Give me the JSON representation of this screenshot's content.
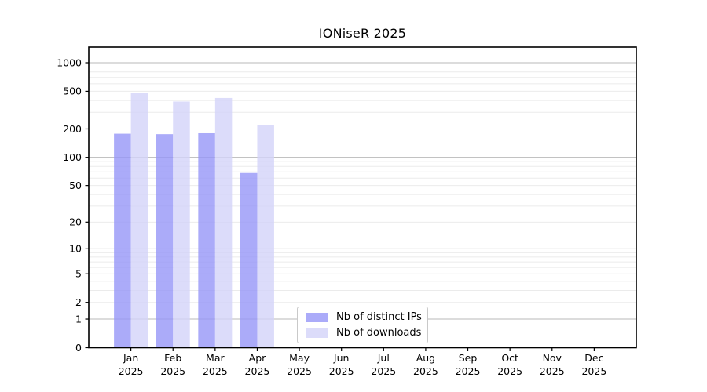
{
  "title": "IONiseR 2025",
  "chart_data": {
    "type": "bar",
    "title": "IONiseR 2025",
    "x_axis": {
      "categories": [
        "Jan",
        "Feb",
        "Mar",
        "Apr",
        "May",
        "Jun",
        "Jul",
        "Aug",
        "Sep",
        "Oct",
        "Nov",
        "Dec"
      ],
      "year_line": "2025"
    },
    "y_axis": {
      "scale": "log1p",
      "ticks": [
        1000,
        500,
        200,
        100,
        50,
        20,
        10,
        5,
        2,
        1,
        0
      ],
      "major_gridlines": [
        1,
        10,
        100,
        1000
      ],
      "ylim": [
        0,
        1464
      ],
      "grid": true
    },
    "series": [
      {
        "name": "Nb of distinct IPs",
        "color": "rgba(150,150,247,0.8)",
        "values": [
          178,
          176,
          180,
          68,
          null,
          null,
          null,
          null,
          null,
          null,
          null,
          null
        ]
      },
      {
        "name": "Nb of downloads",
        "color": "rgba(211,211,249,0.8)",
        "values": [
          480,
          390,
          425,
          220,
          null,
          null,
          null,
          null,
          null,
          null,
          null,
          null
        ]
      }
    ],
    "legend_position": "lower-center"
  },
  "colors": {
    "bar_distinct_ips_rendered": "#aaaaf4",
    "bar_downloads_rendered": "#d9d9fa",
    "gridline_major": "#b9b9b9",
    "gridline_minor": "#ebebeb",
    "axis_spine": "#000000",
    "background": "#ffffff"
  }
}
